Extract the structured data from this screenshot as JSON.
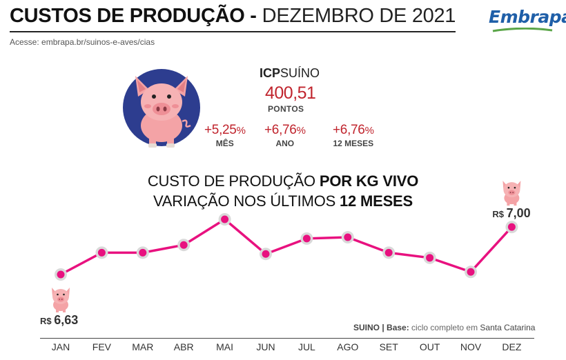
{
  "header": {
    "title_bold": "CUSTOS DE PRODUÇÃO -",
    "title_light": "DEZEMBRO DE 2021",
    "subtitle": "Acesse: embrapa.br/suinos-e-aves/cias",
    "logo_text": "Embrapa"
  },
  "icp": {
    "label_bold": "ICP",
    "label_rest": "SUÍNO",
    "value": "400,51",
    "unit": "PONTOS",
    "variations": [
      {
        "value": "+5,25",
        "pct": "%",
        "label": "MÊS"
      },
      {
        "value": "+6,76",
        "pct": "%",
        "label": "ANO"
      },
      {
        "value": "+6,76",
        "pct": "%",
        "label": "12 MESES"
      }
    ]
  },
  "chart_heading": {
    "line1_normal": "CUSTO DE PRODUÇÃO ",
    "line1_bold": "POR KG VIVO",
    "line2_normal": "VARIAÇÃO NOS ÚLTIMOS ",
    "line2_bold": "12 MESES"
  },
  "chart_data": {
    "type": "line",
    "title": "CUSTO DE PRODUÇÃO POR KG VIVO - VARIAÇÃO NOS ÚLTIMOS 12 MESES",
    "categories": [
      "JAN",
      "FEV",
      "MAR",
      "ABR",
      "MAI",
      "JUN",
      "JUL",
      "AGO",
      "SET",
      "OUT",
      "NOV",
      "DEZ"
    ],
    "values": [
      6.63,
      6.8,
      6.8,
      6.86,
      7.06,
      6.79,
      6.91,
      6.92,
      6.8,
      6.76,
      6.65,
      7.0
    ],
    "ylim": [
      6.4,
      7.2
    ],
    "annotations": [
      {
        "index": 0,
        "text": "R$ 6,63",
        "position": "below"
      },
      {
        "index": 11,
        "text": "R$ 7,00",
        "position": "above"
      }
    ],
    "line_color": "#e8117f",
    "marker_color": "#e8117f",
    "grid": false
  },
  "footnote": {
    "bold": "SUINO | Base:",
    "light": " ciclo completo em ",
    "region": "Santa Catarina"
  },
  "colors": {
    "accent_red": "#c0242d",
    "line_magenta": "#e8117f",
    "circle_blue": "#2d3d8f",
    "pig_pink": "#f4a3a6"
  }
}
